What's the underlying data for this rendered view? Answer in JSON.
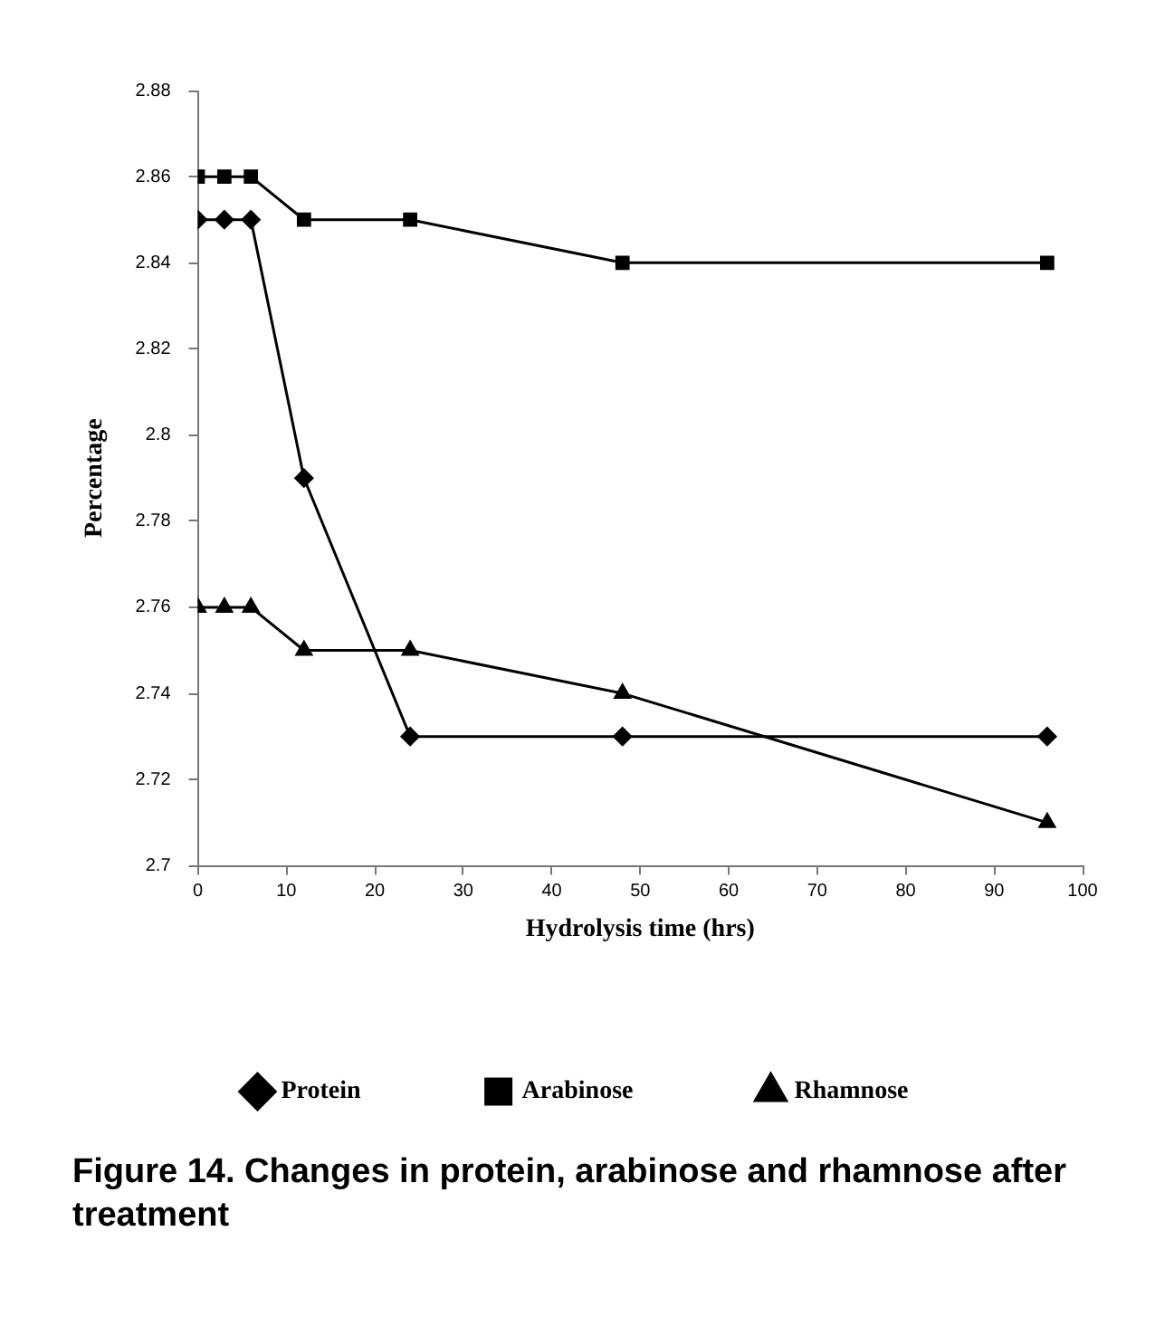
{
  "chart_data": {
    "type": "line",
    "title": "Figure 14. Changes in protein, arabinose and rhamnose after treatment",
    "xlabel": "Hydrolysis time (hrs)",
    "ylabel": "Percentage",
    "x": [
      0,
      3,
      6,
      12,
      24,
      48,
      96
    ],
    "series": [
      {
        "name": "Protein",
        "color": "#000000",
        "marker": "diamond",
        "values": [
          2.85,
          2.85,
          2.85,
          2.79,
          2.73,
          2.73,
          2.73
        ]
      },
      {
        "name": "Arabinose",
        "color": "#000000",
        "marker": "square",
        "values": [
          2.86,
          2.86,
          2.86,
          2.85,
          2.85,
          2.84,
          2.84
        ]
      },
      {
        "name": "Rhamnose",
        "color": "#000000",
        "marker": "triangle",
        "values": [
          2.76,
          2.76,
          2.76,
          2.75,
          2.75,
          2.74,
          2.71
        ]
      }
    ],
    "xlim": [
      0,
      100
    ],
    "xticks": [
      0,
      10,
      20,
      30,
      40,
      50,
      60,
      70,
      80,
      90,
      100
    ],
    "ylim": [
      2.7,
      2.88
    ],
    "yticks": [
      2.7,
      2.72,
      2.74,
      2.76,
      2.78,
      2.8,
      2.82,
      2.84,
      2.86,
      2.88
    ],
    "grid": false,
    "legend": "bottom",
    "line_style": "solid"
  }
}
